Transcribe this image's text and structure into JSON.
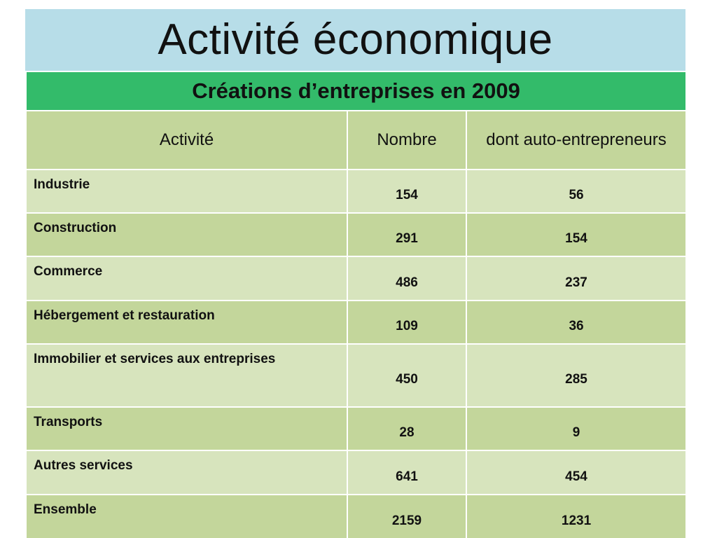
{
  "slide": {
    "title": "Activité économique"
  },
  "table": {
    "caption": "Créations d’entreprises en 2009",
    "headers": {
      "activity": "Activité",
      "count": "Nombre",
      "auto": "dont auto-entrepreneurs"
    },
    "rows": [
      {
        "label": "Industrie",
        "count": "154",
        "auto": "56"
      },
      {
        "label": "Construction",
        "count": "291",
        "auto": "154"
      },
      {
        "label": "Commerce",
        "count": "486",
        "auto": "237"
      },
      {
        "label": "Hébergement et restauration",
        "count": "109",
        "auto": "36"
      },
      {
        "label": "Immobilier et services aux entreprises",
        "count": "450",
        "auto": "285"
      },
      {
        "label": "Transports",
        "count": "28",
        "auto": "9"
      },
      {
        "label": "Autres services",
        "count": "641",
        "auto": "454"
      },
      {
        "label": "Ensemble",
        "count": "2159",
        "auto": "1231"
      }
    ]
  },
  "colors": {
    "title_background": "#b7dde8",
    "caption_background": "#33bb6a",
    "header_background": "#c3d69b",
    "row_light": "#d7e4bd",
    "row_dark": "#c3d69b"
  }
}
